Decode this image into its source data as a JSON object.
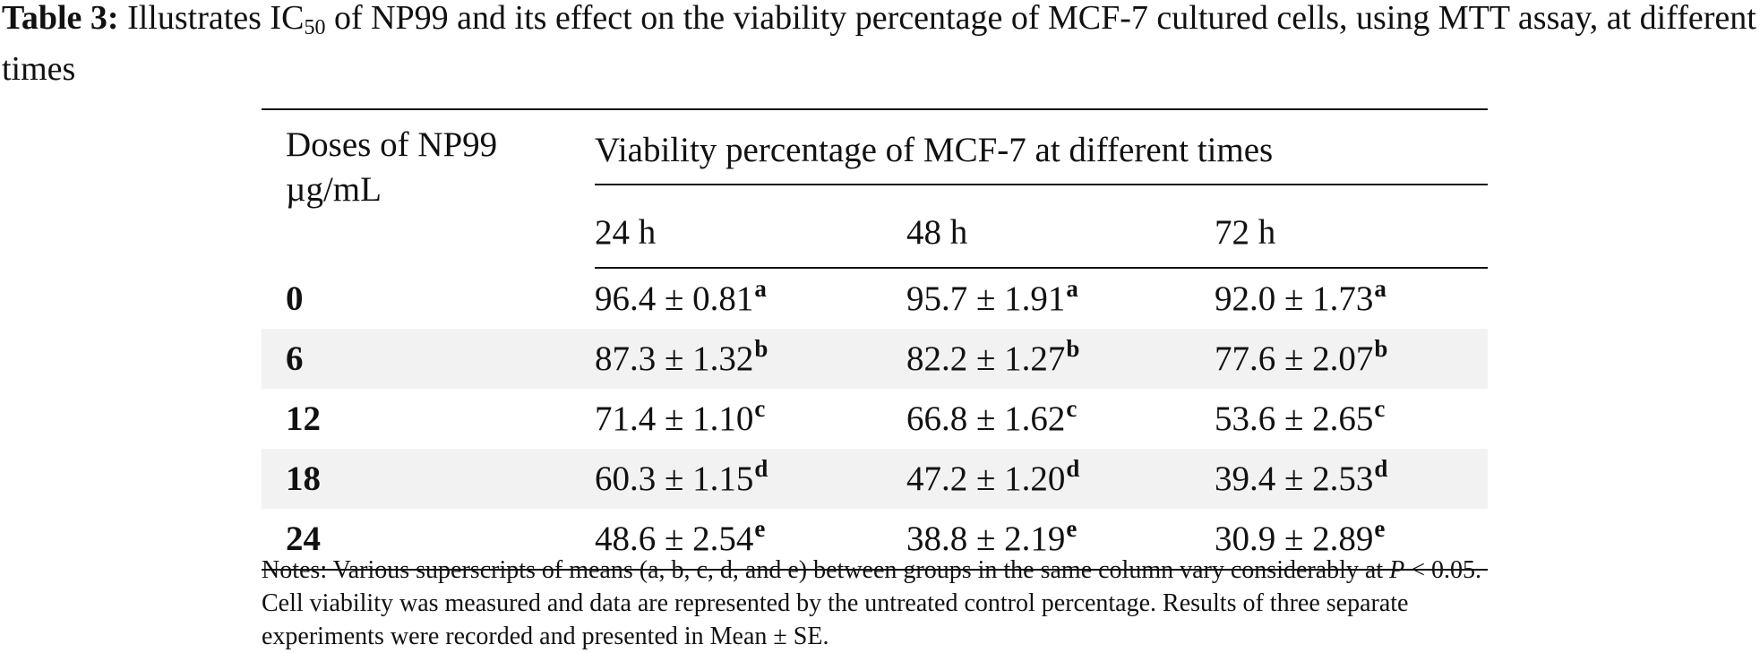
{
  "caption": {
    "label": "Table 3:",
    "pre": "Illustrates IC",
    "sub": "50",
    "post": " of NP99 and its effect on the viability percentage of MCF-7 cultured cells, using MTT assay, at different times"
  },
  "table": {
    "dose_header_line1": "Doses of NP99",
    "dose_header_line2": "µg/mL",
    "group_header": "Viability percentage of MCF-7 at different times",
    "time_headers": [
      "24 h",
      "48 h",
      "72 h"
    ],
    "rows": [
      {
        "dose": "0",
        "cells": [
          {
            "value": "96.4 ± 0.81",
            "sup": "a"
          },
          {
            "value": "95.7 ± 1.91",
            "sup": "a"
          },
          {
            "value": "92.0 ± 1.73",
            "sup": "a"
          }
        ]
      },
      {
        "dose": "6",
        "cells": [
          {
            "value": "87.3 ± 1.32",
            "sup": "b"
          },
          {
            "value": "82.2 ± 1.27",
            "sup": "b"
          },
          {
            "value": "77.6 ± 2.07",
            "sup": "b"
          }
        ]
      },
      {
        "dose": "12",
        "cells": [
          {
            "value": "71.4 ± 1.10",
            "sup": "c"
          },
          {
            "value": "66.8 ± 1.62",
            "sup": "c"
          },
          {
            "value": "53.6 ± 2.65",
            "sup": "c"
          }
        ]
      },
      {
        "dose": "18",
        "cells": [
          {
            "value": "60.3 ± 1.15",
            "sup": "d"
          },
          {
            "value": "47.2 ± 1.20",
            "sup": "d"
          },
          {
            "value": "39.4 ± 2.53",
            "sup": "d"
          }
        ]
      },
      {
        "dose": "24",
        "cells": [
          {
            "value": "48.6 ± 2.54",
            "sup": "e"
          },
          {
            "value": "38.8 ± 2.19",
            "sup": "e"
          },
          {
            "value": "30.9 ± 2.89",
            "sup": "e"
          }
        ]
      }
    ]
  },
  "notes": {
    "part1": "Notes: Various superscripts of means (a, b, c, d, and e) between groups in the same column vary considerably at ",
    "p_symbol": "P",
    "part2": " < 0.05. Cell viability was measured and data are represented by the untreated control percentage. Results of three separate experiments were recorded and presented in Mean ± SE."
  }
}
